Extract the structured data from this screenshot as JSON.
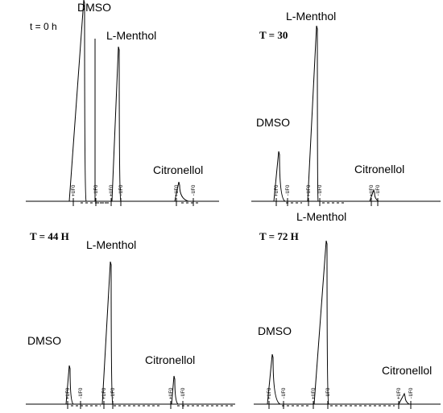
{
  "chart_data": [
    {
      "type": "line",
      "time_label": "t = 0 h",
      "peaks": [
        {
          "name": "DMSO",
          "label": "DMSO",
          "height": 250,
          "off_scale": true
        },
        {
          "name": "L-Menthol",
          "label": "L-Menthol",
          "height": 192
        },
        {
          "name": "Citronellol",
          "label": "Citronellol",
          "height": 24
        }
      ],
      "markers": [
        {
          "name": "+UFO",
          "label": "+UFO"
        },
        {
          "name": "-UFO",
          "label": "-UFO"
        },
        {
          "name": "+UFO",
          "label": "+UFO"
        },
        {
          "name": "-UFO",
          "label": "-UFO"
        },
        {
          "name": "+UFO",
          "label": "+UFO"
        },
        {
          "name": "-UFO",
          "label": "-UFO"
        }
      ]
    },
    {
      "type": "line",
      "time_label": "T  =  30",
      "peaks": [
        {
          "name": "DMSO",
          "label": "DMSO",
          "height": 62
        },
        {
          "name": "L-Menthol",
          "label": "L-Menthol",
          "height": 218
        },
        {
          "name": "Citronellol",
          "label": "Citronellol",
          "height": 14
        }
      ],
      "markers": [
        {
          "name": "+UFO",
          "label": "+UFO"
        },
        {
          "name": "-UFO",
          "label": "-UFO"
        },
        {
          "name": "+UFO",
          "label": "+UFO"
        },
        {
          "name": "-UFO",
          "label": "-UFO"
        },
        {
          "name": "+UFO",
          "label": "+UFO"
        },
        {
          "name": "-UFO",
          "label": "-UFO"
        }
      ]
    },
    {
      "type": "line",
      "time_label": "T = 44 H",
      "peaks": [
        {
          "name": "DMSO",
          "label": "DMSO",
          "height": 48
        },
        {
          "name": "L-Menthol",
          "label": "L-Menthol",
          "height": 177
        },
        {
          "name": "Citronellol",
          "label": "Citronellol",
          "height": 35
        }
      ],
      "markers": [
        {
          "name": "+UFO",
          "label": "+UFO"
        },
        {
          "name": "-UFO",
          "label": "-UFO"
        },
        {
          "name": "+UFO",
          "label": "+UFO"
        },
        {
          "name": "-UFO",
          "label": "-UFO"
        },
        {
          "name": "+UFO",
          "label": "+UFO"
        },
        {
          "name": "-UFO",
          "label": "-UFO"
        }
      ]
    },
    {
      "type": "line",
      "time_label": "T = 72 H",
      "peaks": [
        {
          "name": "DMSO",
          "label": "DMSO",
          "height": 62
        },
        {
          "name": "L-Menthol",
          "label": "L-Menthol",
          "height": 203
        },
        {
          "name": "Citronellol",
          "label": "Citronellol",
          "height": 13
        }
      ],
      "markers": [
        {
          "name": "+UFO",
          "label": "+UFO"
        },
        {
          "name": "-UFO",
          "label": "-UFO"
        },
        {
          "name": "+UFO",
          "label": "+UFO"
        },
        {
          "name": "-UFO",
          "label": "-UFO"
        },
        {
          "name": "+UFO",
          "label": "+UFO"
        },
        {
          "name": "-UFO",
          "label": "-UFO"
        }
      ]
    }
  ]
}
